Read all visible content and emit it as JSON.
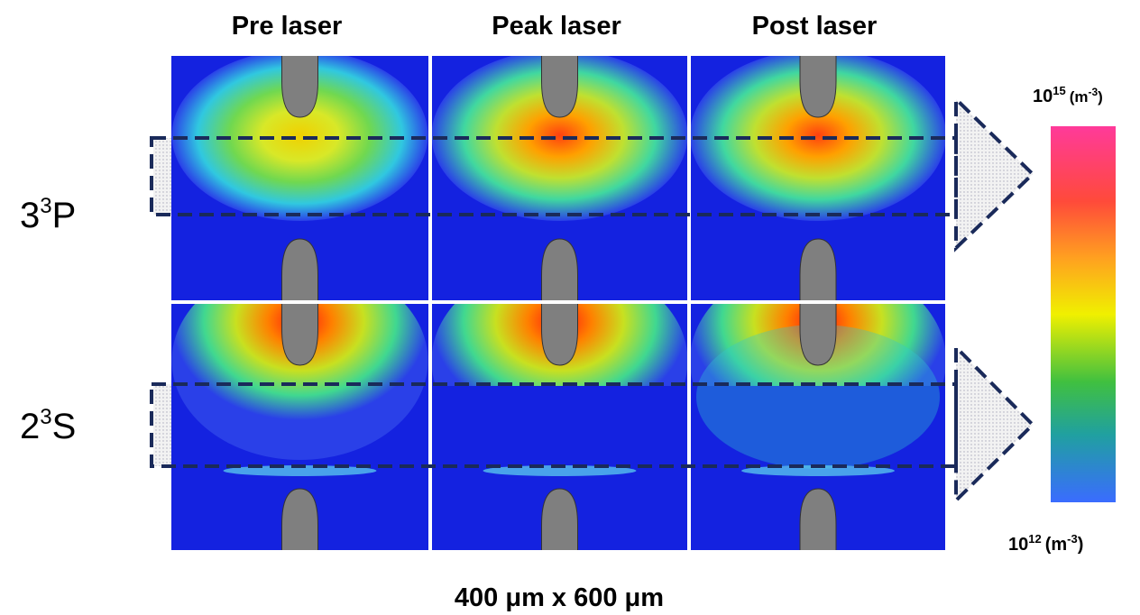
{
  "column_titles": [
    "Pre laser",
    "Peak laser",
    "Post laser"
  ],
  "row_labels": [
    {
      "number": "3",
      "sup": "3",
      "letter": "P"
    },
    {
      "number": "2",
      "sup": "3",
      "letter": "S"
    }
  ],
  "colorbar": {
    "max": {
      "base": "10",
      "exp": "15",
      "unit": "(m",
      "unit_exp": "-3",
      "close": ")"
    },
    "min": {
      "base": "10",
      "exp": "12",
      "unit": "(m",
      "unit_exp": "-3",
      "close": ")"
    }
  },
  "caption": "400 μm x 600 μm"
}
